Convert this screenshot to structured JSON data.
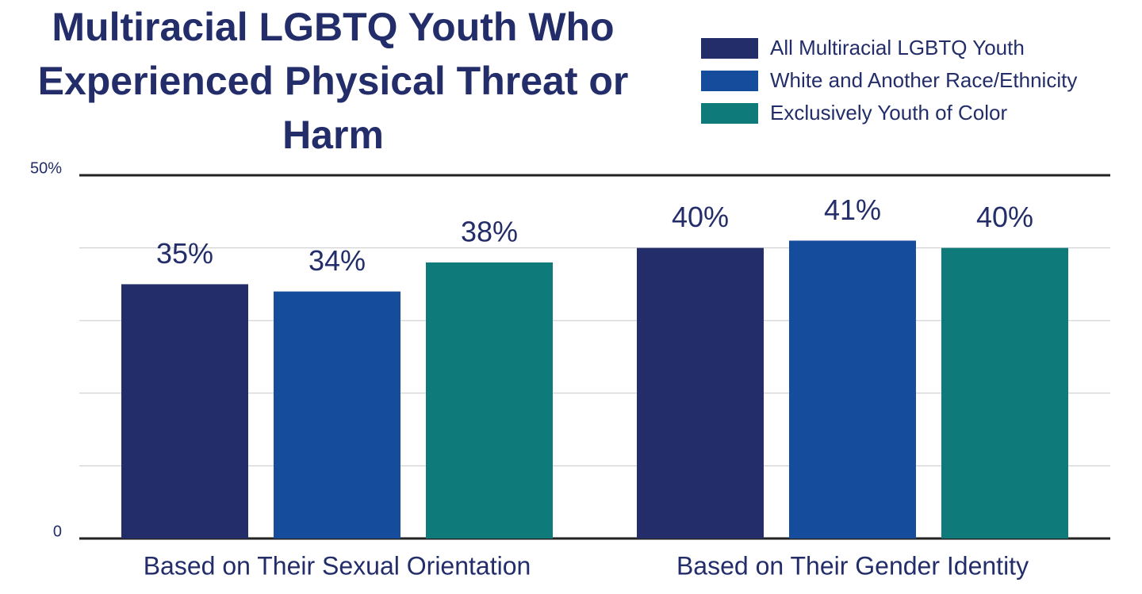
{
  "chart_data": {
    "type": "bar",
    "title": "Multiracial LGBTQ Youth Who Experienced Physical Threat or Harm",
    "categories": [
      "Based on Their Sexual Orientation",
      "Based on Their Gender Identity"
    ],
    "series": [
      {
        "name": "All Multiracial LGBTQ Youth",
        "color": "#232d69",
        "values": [
          35,
          40
        ],
        "value_labels": [
          "35%",
          "40%"
        ]
      },
      {
        "name": "White and Another Race/Ethnicity",
        "color": "#154c9c",
        "values": [
          34,
          41
        ],
        "value_labels": [
          "34%",
          "41%"
        ]
      },
      {
        "name": "Exclusively Youth of Color",
        "color": "#0e7a7a",
        "values": [
          38,
          40
        ],
        "value_labels": [
          "38%",
          "40%"
        ]
      }
    ],
    "ylim": [
      0,
      50
    ],
    "yticks": [
      {
        "value": 0,
        "label": "0"
      },
      {
        "value": 50,
        "label": "50%"
      }
    ],
    "ygrid": [
      10,
      20,
      30,
      40
    ],
    "grid": true,
    "legend": "top-right"
  }
}
